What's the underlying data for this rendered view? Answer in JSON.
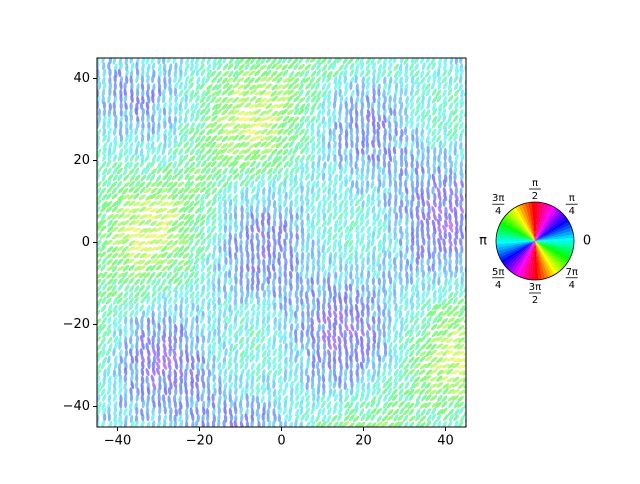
{
  "chart_data": {
    "type": "ellipse-field",
    "xlim": [
      -45,
      45
    ],
    "ylim": [
      -45,
      45
    ],
    "xticks": [
      {
        "value": -40,
        "label": "−40"
      },
      {
        "value": -20,
        "label": "−20"
      },
      0,
      20,
      40
    ],
    "yticks": [
      {
        "value": -40,
        "label": "−40"
      },
      {
        "value": -20,
        "label": "−20"
      },
      0,
      20,
      40
    ],
    "angle_labels": [
      {
        "value": 0,
        "label": "0"
      },
      {
        "value": 0.7854,
        "numerator": "π",
        "denominator": "4"
      },
      {
        "value": 1.5708,
        "numerator": "π",
        "denominator": "2"
      },
      {
        "value": 2.3562,
        "numerator": "3π",
        "denominator": "4"
      },
      {
        "value": 3.1416,
        "label": "π"
      },
      {
        "value": 3.927,
        "numerator": "5π",
        "denominator": "4"
      },
      {
        "value": 4.7124,
        "numerator": "3π",
        "denominator": "2"
      },
      {
        "value": 5.4978,
        "numerator": "7π",
        "denominator": "4"
      }
    ]
  }
}
